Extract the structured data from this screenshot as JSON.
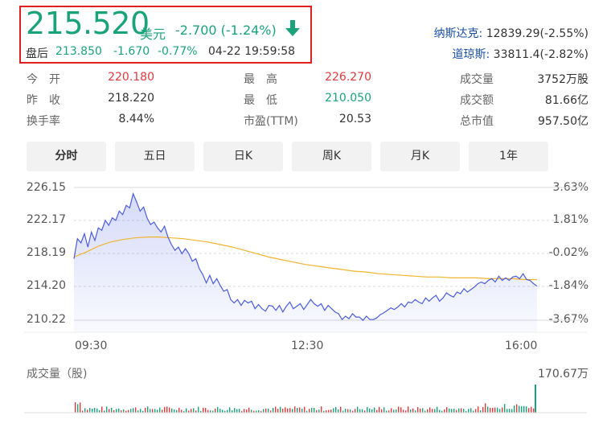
{
  "quote": {
    "price": "215.520",
    "currency": "美元",
    "change": "-2.700 (-1.24%)",
    "after_hours_label": "盘后",
    "after_hours_price": "213.850",
    "after_hours_change": "-1.670",
    "after_hours_pct": "-0.77%",
    "after_hours_time": "04-22 19:59:58",
    "arrow_icon": "arrow-down-icon",
    "down_color": "#1aa37a",
    "up_color": "#e0393e"
  },
  "indices": [
    {
      "name": "纳斯达克:",
      "value": "12839.29(-2.55%)"
    },
    {
      "name": "道琼斯:",
      "value": "33811.4(-2.82%)"
    }
  ],
  "stats": {
    "col1": [
      {
        "label": "今　开",
        "value": "220.180",
        "color": "red"
      },
      {
        "label": "昨　收",
        "value": "218.220",
        "color": "normal"
      },
      {
        "label": "换手率",
        "value": "8.44%",
        "color": "normal"
      }
    ],
    "col2": [
      {
        "label": "最　高",
        "value": "226.270",
        "color": "red"
      },
      {
        "label": "最　低",
        "value": "210.050",
        "color": "green"
      },
      {
        "label": "市盈(TTM)",
        "value": "20.53",
        "color": "normal"
      }
    ],
    "col3": [
      {
        "label": "成交量",
        "value": "3752万股"
      },
      {
        "label": "成交额",
        "value": "81.66亿"
      },
      {
        "label": "总市值",
        "value": "957.50亿"
      }
    ]
  },
  "tabs": [
    "分时",
    "五日",
    "日K",
    "周K",
    "月K",
    "1年"
  ],
  "active_tab": "分时",
  "volume_section": {
    "label": "成交量（股)",
    "max_label": "170.67万"
  },
  "chart_data": {
    "type": "line",
    "y_ticks": [
      "226.15",
      "222.17",
      "218.19",
      "214.20",
      "210.22"
    ],
    "y_pct_ticks": [
      "3.63%",
      "1.81%",
      "-0.02%",
      "-1.84%",
      "-3.67%"
    ],
    "x_ticks": [
      "09:30",
      "12:30",
      "16:00"
    ],
    "ylim": [
      210.22,
      226.15
    ],
    "series": [
      {
        "values": [
          217.6,
          220.0,
          219.5,
          220.6,
          219.0,
          220.8,
          219.8,
          221.3,
          221.0,
          222.2,
          221.6,
          222.5,
          222.2,
          223.3,
          222.9,
          224.0,
          223.7,
          225.4,
          224.4,
          223.3,
          223.8,
          222.5,
          221.7,
          222.0,
          221.3,
          220.8,
          221.5,
          220.2,
          219.3,
          218.6,
          219.0,
          218.2,
          218.8,
          218.2,
          217.3,
          217.6,
          216.4,
          215.7,
          214.7,
          215.6,
          214.6,
          215.2,
          214.4,
          213.7,
          213.9,
          212.7,
          212.3,
          212.7,
          212.0,
          212.6,
          212.3,
          212.5,
          211.6,
          212.1,
          211.6,
          211.3,
          212.0,
          211.9,
          211.4,
          212.0,
          211.2,
          211.9,
          212.4,
          211.6,
          211.9,
          212.2,
          211.5,
          212.1,
          212.7,
          212.2,
          211.9,
          212.2,
          211.4,
          212.0,
          211.6,
          211.2,
          211.0,
          210.3,
          210.7,
          210.4,
          211.0,
          210.6,
          210.6,
          210.2,
          210.7,
          210.3,
          210.3,
          210.5,
          210.9,
          211.1,
          211.4,
          211.7,
          211.5,
          211.8,
          212.2,
          211.8,
          212.4,
          212.3,
          212.7,
          212.4,
          212.2,
          212.9,
          212.5,
          212.9,
          213.2,
          212.5,
          212.9,
          213.5,
          213.2,
          213.0,
          213.6,
          213.4,
          214.0,
          213.6,
          213.9,
          214.2,
          214.6,
          214.8,
          214.6,
          215.0,
          215.2,
          214.8,
          215.5,
          215.0,
          215.3,
          215.0,
          215.4,
          215.5,
          215.2,
          215.8,
          215.1,
          215.0,
          214.6,
          214.3
        ],
        "color": "#4a5cdc"
      },
      {
        "values": [
          217.8,
          218.4,
          219.1,
          219.6,
          219.9,
          220.1,
          220.2,
          220.2,
          220.1,
          220.0,
          219.8,
          219.6,
          219.3,
          219.0,
          218.6,
          218.2,
          217.8,
          217.5,
          217.2,
          216.9,
          216.7,
          216.5,
          216.3,
          216.1,
          216.0,
          215.8,
          215.7,
          215.6,
          215.5,
          215.4,
          215.4,
          215.3,
          215.3,
          215.3,
          215.2,
          215.2,
          215.2,
          215.1,
          215.1
        ],
        "color": "#f2b32e"
      }
    ],
    "volume_ylim": [
      0,
      170.67
    ]
  }
}
